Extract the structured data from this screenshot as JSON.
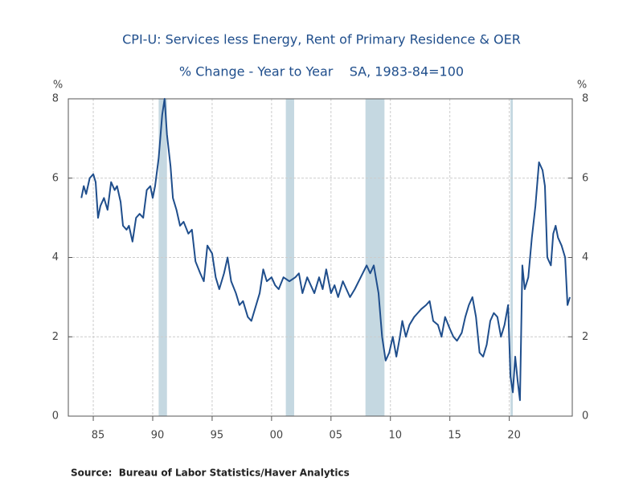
{
  "chart_data": {
    "type": "line",
    "title": "CPI-U: Services less Energy, Rent of Primary Residence & OER",
    "subtitle": "% Change - Year to Year    SA, 1983-84=100",
    "y_label": "%",
    "y2_label": "%",
    "source": "Source:  Bureau of Labor Statistics/Haver Analytics",
    "xlim": [
      1982.9,
      2025.3
    ],
    "xticks": [
      {
        "value": 1985,
        "label": "85"
      },
      {
        "value": 1990,
        "label": "90"
      },
      {
        "value": 1995,
        "label": "95"
      },
      {
        "value": 2000,
        "label": "00"
      },
      {
        "value": 2005,
        "label": "05"
      },
      {
        "value": 2010,
        "label": "10"
      },
      {
        "value": 2015,
        "label": "15"
      },
      {
        "value": 2020,
        "label": "20"
      }
    ],
    "ylim": [
      0,
      8
    ],
    "yticks": [
      0,
      2,
      4,
      6,
      8
    ],
    "y2lim": [
      0,
      8
    ],
    "y2ticks": [
      0,
      2,
      4,
      6,
      8
    ],
    "grid": true,
    "shade_color": "#c5d8e1",
    "recessions": [
      [
        1990.5,
        1991.2
      ],
      [
        2001.2,
        2001.9
      ],
      [
        2007.9,
        2009.5
      ],
      [
        2020.1,
        2020.3
      ]
    ],
    "series": [
      {
        "name": "CPI-U: Services less Energy, Rent of Primary Residence & OER",
        "color": "#1f4e8c",
        "x": [
          1984.0,
          1984.2,
          1984.4,
          1984.7,
          1985.0,
          1985.2,
          1985.4,
          1985.6,
          1985.9,
          1986.2,
          1986.5,
          1986.8,
          1987.0,
          1987.3,
          1987.5,
          1987.8,
          1988.0,
          1988.3,
          1988.6,
          1988.9,
          1989.2,
          1989.5,
          1989.8,
          1990.0,
          1990.2,
          1990.5,
          1990.8,
          1991.0,
          1991.2,
          1991.5,
          1991.7,
          1992.0,
          1992.3,
          1992.6,
          1993.0,
          1993.3,
          1993.6,
          1994.0,
          1994.3,
          1994.6,
          1995.0,
          1995.3,
          1995.6,
          1996.0,
          1996.3,
          1996.6,
          1997.0,
          1997.3,
          1997.6,
          1998.0,
          1998.3,
          1998.6,
          1999.0,
          1999.3,
          1999.6,
          2000.0,
          2000.3,
          2000.6,
          2001.0,
          2001.5,
          2002.0,
          2002.3,
          2002.6,
          2003.0,
          2003.3,
          2003.6,
          2004.0,
          2004.3,
          2004.6,
          2005.0,
          2005.3,
          2005.6,
          2006.0,
          2006.3,
          2006.6,
          2007.0,
          2007.5,
          2008.0,
          2008.3,
          2008.6,
          2009.0,
          2009.3,
          2009.6,
          2009.9,
          2010.2,
          2010.5,
          2010.8,
          2011.0,
          2011.3,
          2011.6,
          2012.0,
          2012.3,
          2012.6,
          2013.0,
          2013.3,
          2013.6,
          2014.0,
          2014.3,
          2014.6,
          2015.0,
          2015.3,
          2015.6,
          2016.0,
          2016.3,
          2016.6,
          2016.9,
          2017.2,
          2017.5,
          2017.8,
          2018.1,
          2018.4,
          2018.7,
          2019.0,
          2019.3,
          2019.6,
          2019.9,
          2020.1,
          2020.3,
          2020.5,
          2020.7,
          2020.9,
          2021.1,
          2021.3,
          2021.6,
          2021.9,
          2022.2,
          2022.5,
          2022.8,
          2023.0,
          2023.2,
          2023.5,
          2023.7,
          2023.9,
          2024.1,
          2024.4,
          2024.7,
          2024.9,
          2025.1
        ],
        "values": [
          5.5,
          5.8,
          5.6,
          6.0,
          6.1,
          5.9,
          5.0,
          5.3,
          5.5,
          5.2,
          5.9,
          5.7,
          5.8,
          5.4,
          4.8,
          4.7,
          4.8,
          4.4,
          5.0,
          5.1,
          5.0,
          5.7,
          5.8,
          5.5,
          5.8,
          6.5,
          7.6,
          8.0,
          7.1,
          6.3,
          5.5,
          5.2,
          4.8,
          4.9,
          4.6,
          4.7,
          3.9,
          3.6,
          3.4,
          4.3,
          4.1,
          3.5,
          3.2,
          3.6,
          4.0,
          3.4,
          3.1,
          2.8,
          2.9,
          2.5,
          2.4,
          2.7,
          3.1,
          3.7,
          3.4,
          3.5,
          3.3,
          3.2,
          3.5,
          3.4,
          3.5,
          3.6,
          3.1,
          3.5,
          3.3,
          3.1,
          3.5,
          3.2,
          3.7,
          3.1,
          3.3,
          3.0,
          3.4,
          3.2,
          3.0,
          3.2,
          3.5,
          3.8,
          3.6,
          3.8,
          3.1,
          2.0,
          1.4,
          1.6,
          2.0,
          1.5,
          2.0,
          2.4,
          2.0,
          2.3,
          2.5,
          2.6,
          2.7,
          2.8,
          2.9,
          2.4,
          2.3,
          2.0,
          2.5,
          2.2,
          2.0,
          1.9,
          2.1,
          2.5,
          2.8,
          3.0,
          2.5,
          1.6,
          1.5,
          1.8,
          2.4,
          2.6,
          2.5,
          2.0,
          2.3,
          2.8,
          1.0,
          0.6,
          1.5,
          0.9,
          0.4,
          3.8,
          3.2,
          3.5,
          4.5,
          5.3,
          6.4,
          6.2,
          5.8,
          4.0,
          3.8,
          4.6,
          4.8,
          4.5,
          4.3,
          4.0,
          2.8,
          3.0
        ]
      }
    ]
  }
}
